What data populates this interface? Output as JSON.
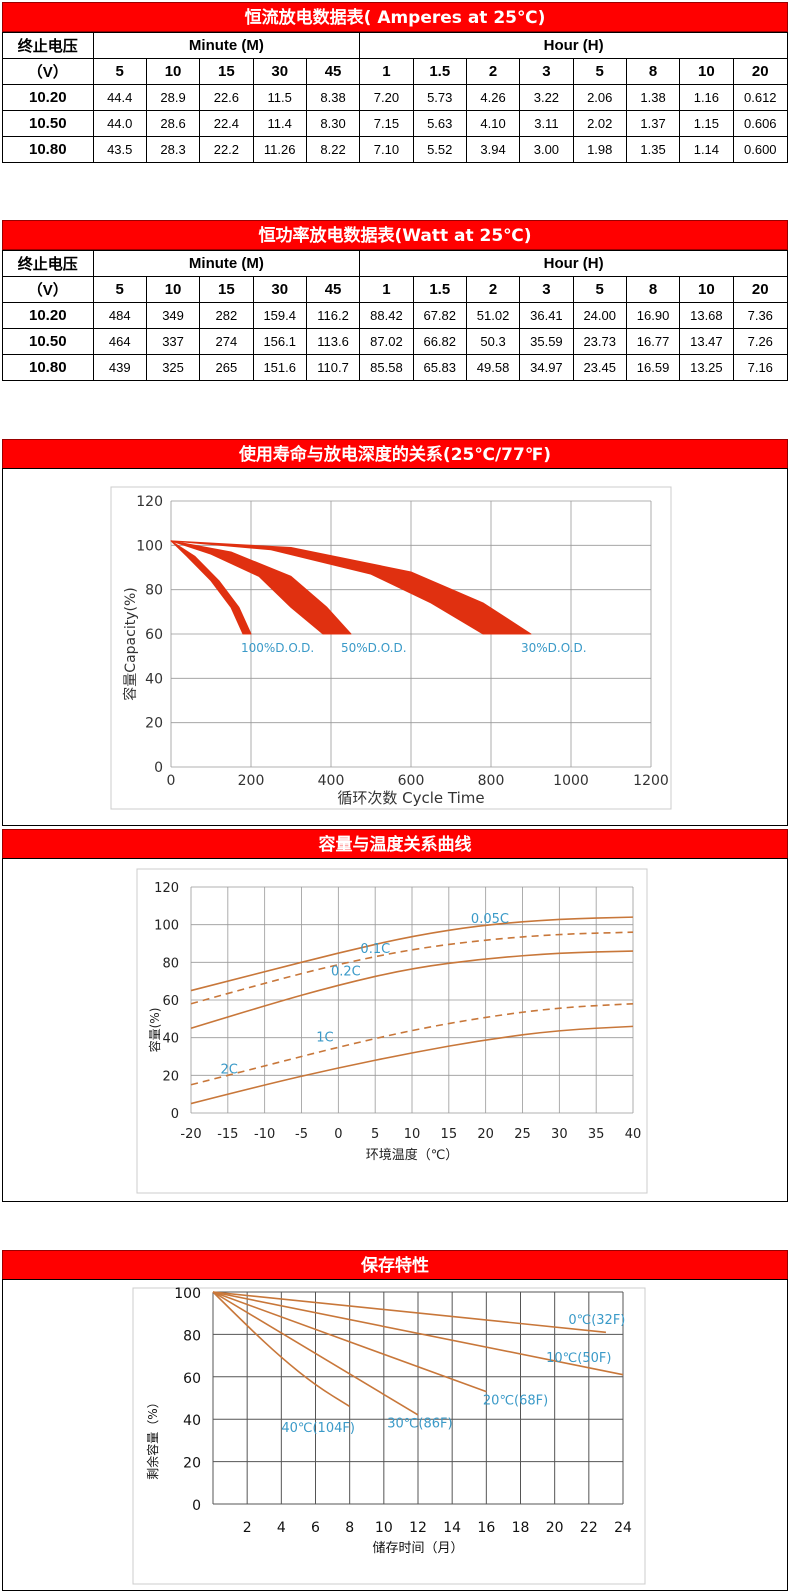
{
  "tables": [
    {
      "title": "恒流放电数据表( Amperes at 25℃)",
      "row_header_1": "终止电压",
      "row_header_2": "（V）",
      "group_minute": "Minute (M)",
      "group_hour": "Hour (H)",
      "minute_cols": [
        "5",
        "10",
        "15",
        "30",
        "45"
      ],
      "hour_cols": [
        "1",
        "1.5",
        "2",
        "3",
        "5",
        "8",
        "10",
        "20"
      ],
      "rows": [
        {
          "v": "10.20",
          "vals": [
            "44.4",
            "28.9",
            "22.6",
            "11.5",
            "8.38",
            "7.20",
            "5.73",
            "4.26",
            "3.22",
            "2.06",
            "1.38",
            "1.16",
            "0.612"
          ]
        },
        {
          "v": "10.50",
          "vals": [
            "44.0",
            "28.6",
            "22.4",
            "11.4",
            "8.30",
            "7.15",
            "5.63",
            "4.10",
            "3.11",
            "2.02",
            "1.37",
            "1.15",
            "0.606"
          ]
        },
        {
          "v": "10.80",
          "vals": [
            "43.5",
            "28.3",
            "22.2",
            "11.26",
            "8.22",
            "7.10",
            "5.52",
            "3.94",
            "3.00",
            "1.98",
            "1.35",
            "1.14",
            "0.600"
          ]
        }
      ]
    },
    {
      "title": "恒功率放电数据表(Watt at 25℃)",
      "row_header_1": "终止电压",
      "row_header_2": "（V）",
      "group_minute": "Minute (M)",
      "group_hour": "Hour (H)",
      "minute_cols": [
        "5",
        "10",
        "15",
        "30",
        "45"
      ],
      "hour_cols": [
        "1",
        "1.5",
        "2",
        "3",
        "5",
        "8",
        "10",
        "20"
      ],
      "rows": [
        {
          "v": "10.20",
          "vals": [
            "484",
            "349",
            "282",
            "159.4",
            "116.2",
            "88.42",
            "67.82",
            "51.02",
            "36.41",
            "24.00",
            "16.90",
            "13.68",
            "7.36"
          ]
        },
        {
          "v": "10.50",
          "vals": [
            "464",
            "337",
            "274",
            "156.1",
            "113.6",
            "87.02",
            "66.82",
            "50.3",
            "35.59",
            "23.73",
            "16.77",
            "13.47",
            "7.26"
          ]
        },
        {
          "v": "10.80",
          "vals": [
            "439",
            "325",
            "265",
            "151.6",
            "110.7",
            "85.58",
            "65.83",
            "49.58",
            "34.97",
            "23.45",
            "16.59",
            "13.25",
            "7.16"
          ]
        }
      ]
    }
  ],
  "chart_data": [
    {
      "type": "area",
      "title": "使用寿命与放电深度的关系(25℃/77℉)",
      "xlabel": "循环次数 Cycle Time",
      "ylabel": "容量Capacity(%)",
      "xlim": [
        0,
        1200
      ],
      "ylim": [
        0,
        120
      ],
      "xticks": [
        "0",
        "200",
        "400",
        "600",
        "800",
        "1000",
        "1200"
      ],
      "yticks": [
        "0",
        "20",
        "40",
        "60",
        "80",
        "100",
        "120"
      ],
      "series": [
        {
          "name": "100%D.O.D.",
          "upper": [
            [
              0,
              102
            ],
            [
              60,
              95
            ],
            [
              120,
              84
            ],
            [
              170,
              72
            ],
            [
              200,
              60
            ]
          ],
          "lower": [
            [
              0,
              102
            ],
            [
              40,
              95
            ],
            [
              100,
              84
            ],
            [
              150,
              72
            ],
            [
              180,
              60
            ]
          ],
          "color": "#e03010"
        },
        {
          "name": "50%D.O.D.",
          "upper": [
            [
              0,
              102
            ],
            [
              150,
              97
            ],
            [
              300,
              86
            ],
            [
              390,
              72
            ],
            [
              450,
              60
            ]
          ],
          "lower": [
            [
              0,
              102
            ],
            [
              100,
              96
            ],
            [
              220,
              86
            ],
            [
              300,
              72
            ],
            [
              380,
              60
            ]
          ],
          "color": "#e03010"
        },
        {
          "name": "30%D.O.D.",
          "upper": [
            [
              0,
              102
            ],
            [
              300,
              99
            ],
            [
              600,
              88
            ],
            [
              780,
              74
            ],
            [
              900,
              60
            ]
          ],
          "lower": [
            [
              0,
              102
            ],
            [
              250,
              98
            ],
            [
              500,
              87
            ],
            [
              650,
              74
            ],
            [
              780,
              60
            ]
          ],
          "color": "#e03010"
        }
      ]
    },
    {
      "type": "line",
      "title": "容量与温度关系曲线",
      "xlabel": "环境温度（℃）",
      "ylabel": "容量(%)",
      "xlim": [
        -20,
        40
      ],
      "ylim": [
        0,
        120
      ],
      "xticks": [
        "-20",
        "-15",
        "-10",
        "-5",
        "0",
        "5",
        "10",
        "15",
        "20",
        "25",
        "30",
        "35",
        "40"
      ],
      "yticks": [
        "0",
        "20",
        "40",
        "60",
        "80",
        "100",
        "120"
      ],
      "series": [
        {
          "name": "0.05C",
          "dashed": false,
          "x": [
            -20,
            -10,
            0,
            10,
            20,
            30,
            40
          ],
          "y": [
            65,
            75,
            85,
            94,
            100,
            103,
            104
          ]
        },
        {
          "name": "0.1C",
          "dashed": true,
          "x": [
            -20,
            -10,
            0,
            10,
            20,
            30,
            40
          ],
          "y": [
            58,
            69,
            79,
            87,
            92,
            95,
            96
          ]
        },
        {
          "name": "0.2C",
          "dashed": false,
          "x": [
            -20,
            -10,
            0,
            10,
            20,
            30,
            40
          ],
          "y": [
            45,
            57,
            68,
            77,
            82,
            85,
            86
          ]
        },
        {
          "name": "1C",
          "dashed": true,
          "x": [
            -20,
            -10,
            0,
            10,
            20,
            30,
            40
          ],
          "y": [
            15,
            25,
            35,
            44,
            51,
            56,
            58
          ]
        },
        {
          "name": "2C",
          "dashed": false,
          "x": [
            -20,
            -10,
            0,
            10,
            20,
            30,
            40
          ],
          "y": [
            5,
            15,
            24,
            32,
            39,
            44,
            46
          ]
        }
      ]
    },
    {
      "type": "line",
      "title": "保存特性",
      "xlabel": "储存时间（月）",
      "ylabel": "剩余容量（%）",
      "xlim": [
        0,
        24
      ],
      "ylim": [
        0,
        100
      ],
      "xticks": [
        "2",
        "4",
        "6",
        "8",
        "10",
        "12",
        "14",
        "16",
        "18",
        "20",
        "22",
        "24"
      ],
      "yticks": [
        "0",
        "20",
        "40",
        "60",
        "80",
        "100"
      ],
      "series": [
        {
          "name": "0℃(32F)",
          "x": [
            0,
            23
          ],
          "y": [
            100,
            81
          ]
        },
        {
          "name": "10℃(50F)",
          "x": [
            0,
            24
          ],
          "y": [
            100,
            61
          ]
        },
        {
          "name": "20℃(68F)",
          "x": [
            0,
            16
          ],
          "y": [
            100,
            53
          ]
        },
        {
          "name": "30℃(86F)",
          "x": [
            0,
            12
          ],
          "y": [
            100,
            42
          ]
        },
        {
          "name": "40℃(104F)",
          "x": [
            0,
            2,
            4,
            6,
            8
          ],
          "y": [
            100,
            84,
            69,
            56,
            46
          ]
        }
      ]
    }
  ],
  "colors": {
    "header_bar": "#ff0000",
    "curve_orange": "#c8773a",
    "curve_red": "#e03010",
    "label_blue": "#3a9ac8"
  }
}
